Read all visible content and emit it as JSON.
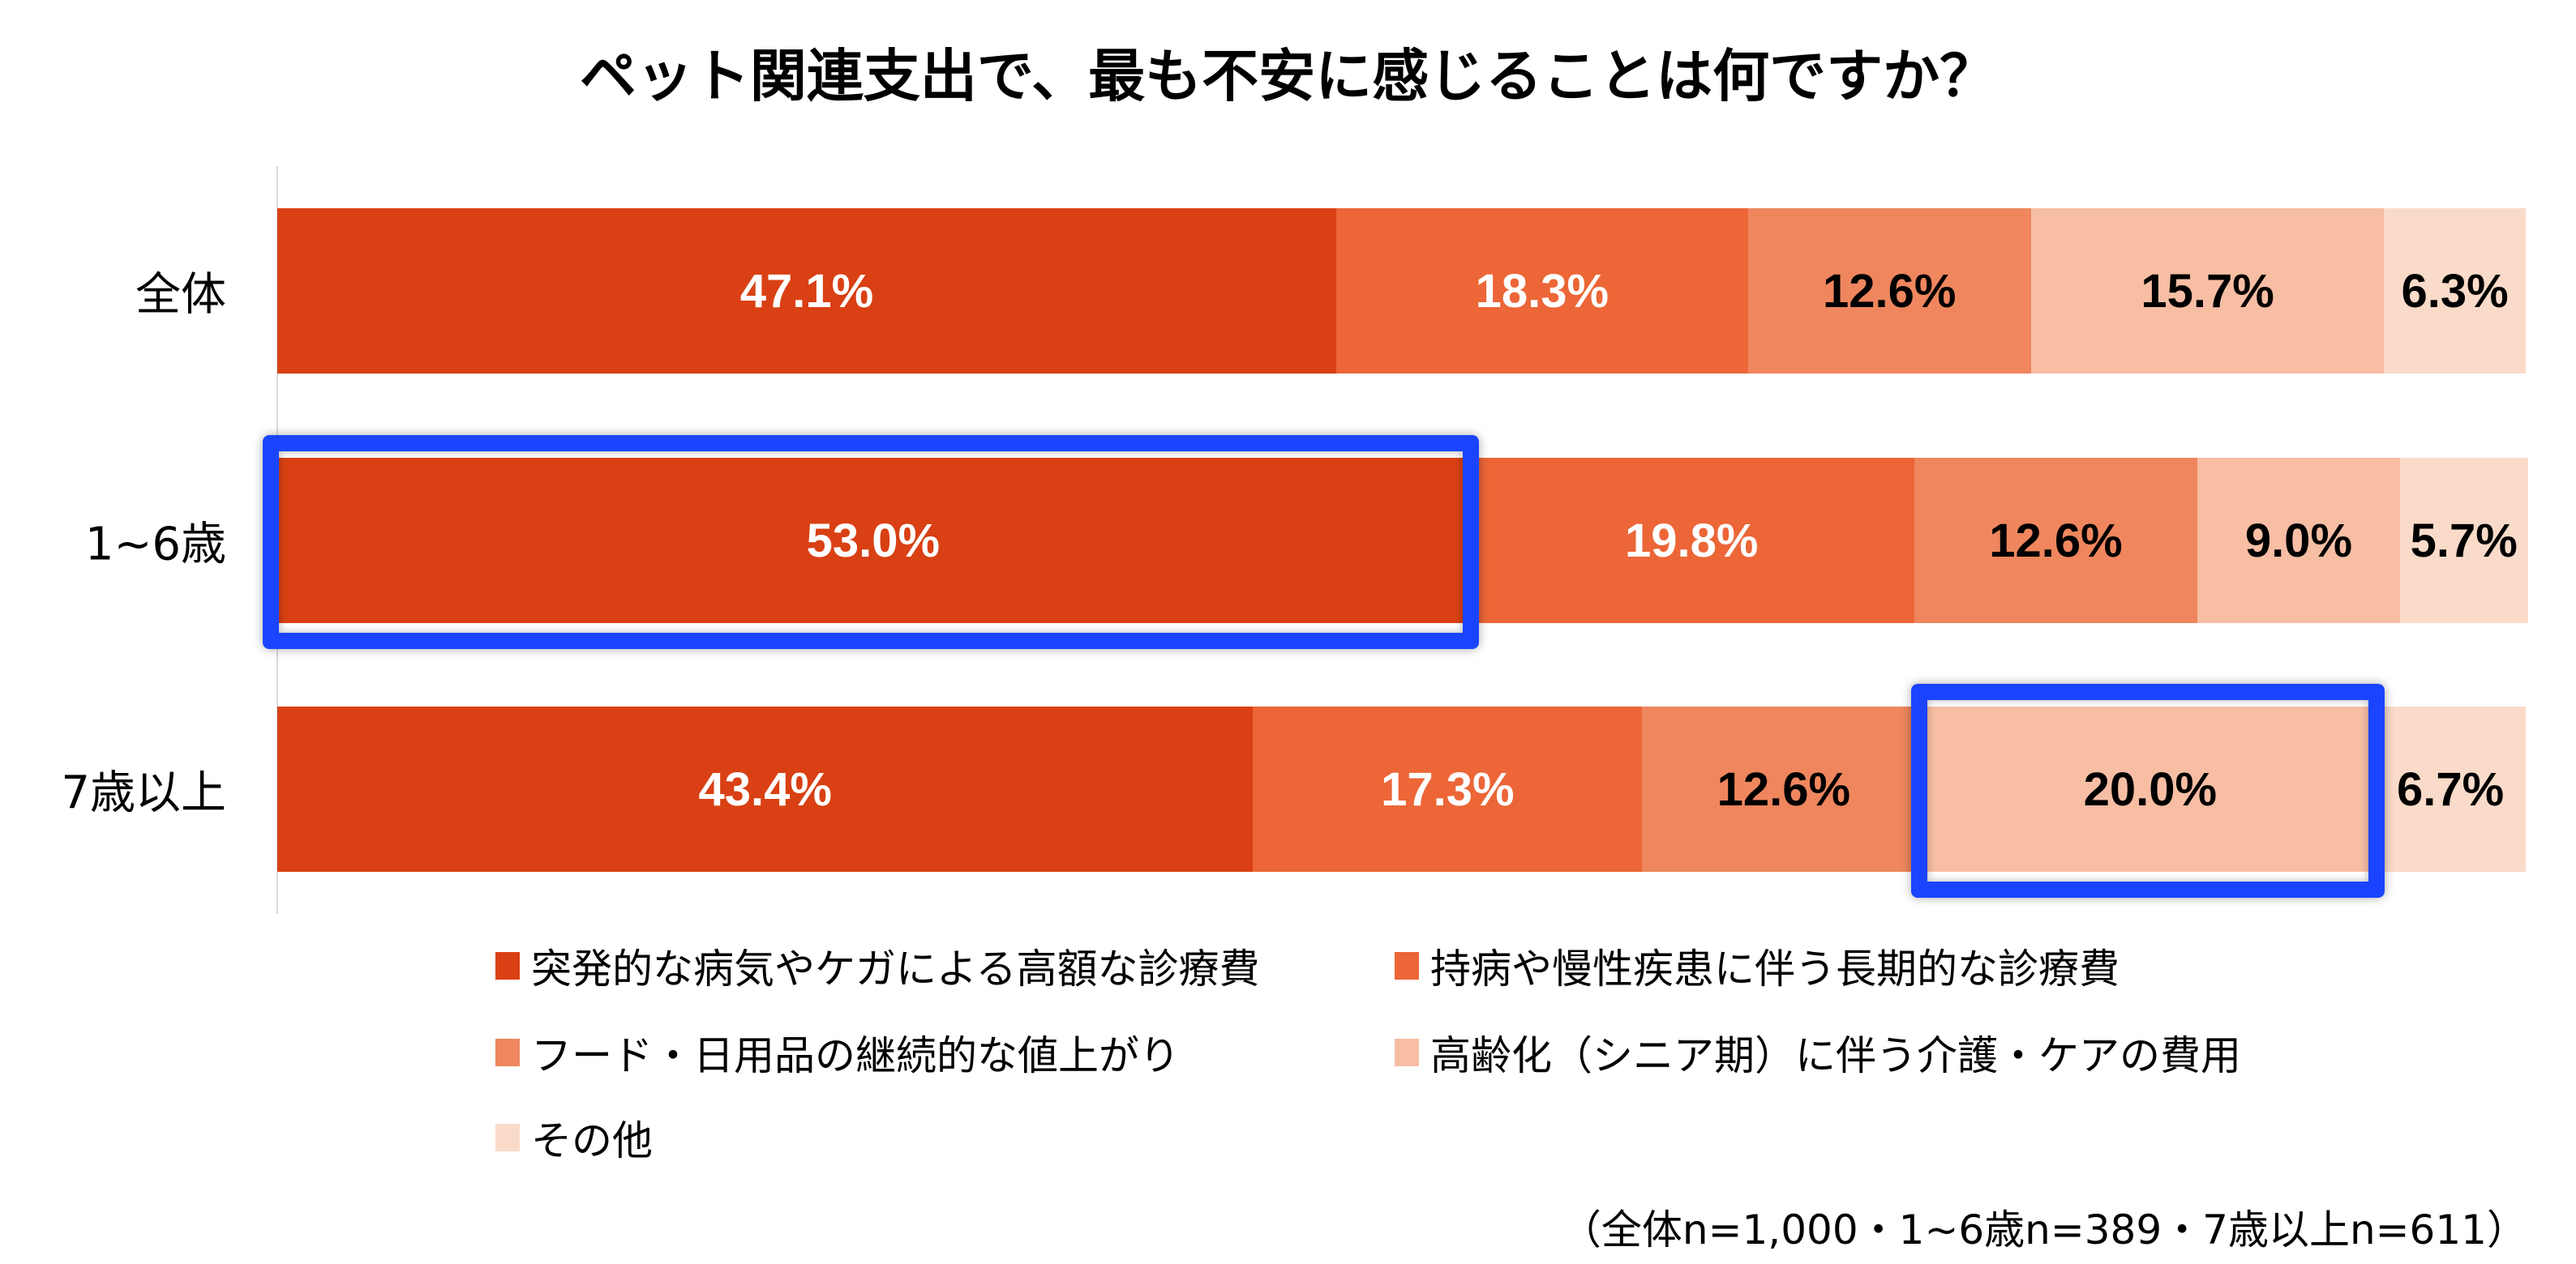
{
  "chart_data": {
    "type": "bar",
    "orientation": "horizontal-stacked-100",
    "title": "ペット関連支出で、最も不安に感じることは何ですか？",
    "categories": [
      "全体",
      "1~6歳",
      "7歳以上"
    ],
    "series": [
      {
        "name": "突発的な病気やケガによる高額な診療費",
        "color": "#d94013",
        "label_color": "#ffffff",
        "values": [
          47.1,
          53.0,
          43.4
        ]
      },
      {
        "name": "持病や慢性疾患に伴う長期的な診療費",
        "color": "#ec6637",
        "label_color": "#ffffff",
        "values": [
          18.3,
          19.8,
          17.3
        ]
      },
      {
        "name": "フード・日用品の継続的な値上がり",
        "color": "#ef865e",
        "label_color": "#000000",
        "values": [
          12.6,
          12.6,
          12.6
        ]
      },
      {
        "name": "高齢化（シニア期）に伴う介護・ケアの費用",
        "color": "#f7bea4",
        "label_color": "#000000",
        "values": [
          15.7,
          9.0,
          20.0
        ]
      },
      {
        "name": "その他",
        "color": "#fadbc9",
        "label_color": "#000000",
        "values": [
          6.3,
          5.7,
          6.7
        ]
      }
    ],
    "xlim": [
      0,
      100
    ],
    "unit": "%",
    "highlights": [
      {
        "category": 1,
        "series": 0
      },
      {
        "category": 2,
        "series": 3
      }
    ],
    "highlight_color": "#1a44ff",
    "legend_position": "bottom",
    "footnote": "（全体n=1,000・1~6歳n=389・7歳以上n=611）"
  }
}
